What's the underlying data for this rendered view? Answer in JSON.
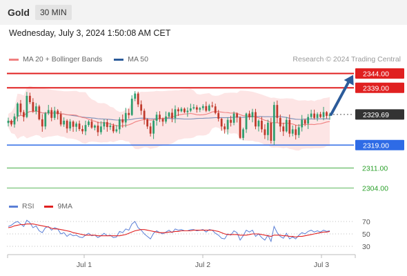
{
  "header": {
    "symbol": "Gold",
    "timeframe": "30 MIN"
  },
  "datetime": "Wednesday, July 3, 2024 1:50:08 AM CET",
  "legend": {
    "ma20": {
      "label": "MA 20 + Bollinger Bands",
      "color": "#f08080"
    },
    "ma50": {
      "label": "MA 50",
      "color": "#2b5b9a"
    },
    "credit": "Research © 2024 Trading Central"
  },
  "rsi_legend": {
    "rsi": {
      "label": "RSI",
      "color": "#5b7fd6"
    },
    "ma9": {
      "label": "9MA",
      "color": "#e02020"
    }
  },
  "colors": {
    "resistance": "#e02020",
    "support": "#2e6be6",
    "target": "#2aa02a",
    "current": "#333333",
    "arrow": "#2b5b9a",
    "up": "#2e9e6e",
    "down": "#c0392b",
    "band": "#fde0e0"
  },
  "chart_data": {
    "type": "candlestick",
    "ylim": [
      2300,
      2346
    ],
    "x_labels": [
      "Jul 1",
      "Jul 2",
      "Jul 3"
    ],
    "levels": [
      {
        "label": "2344.00",
        "value": 2344.0,
        "kind": "resistance"
      },
      {
        "label": "2339.00",
        "value": 2339.0,
        "kind": "resistance"
      },
      {
        "label": "2329.69",
        "value": 2329.69,
        "kind": "current"
      },
      {
        "label": "2319.00",
        "value": 2319.0,
        "kind": "support"
      },
      {
        "label": "2311.00",
        "value": 2311.0,
        "kind": "target"
      },
      {
        "label": "2304.00",
        "value": 2304.0,
        "kind": "target"
      }
    ],
    "forecast": {
      "from": 2329.7,
      "to": 2343.5
    },
    "closes": [
      2327.5,
      2326.2,
      2329.0,
      2333.5,
      2330.5,
      2328.8,
      2336.2,
      2334.0,
      2330.8,
      2332.5,
      2328.0,
      2325.5,
      2330.1,
      2331.2,
      2328.5,
      2331.0,
      2329.8,
      2326.2,
      2327.5,
      2324.8,
      2327.2,
      2325.4,
      2326.5,
      2324.6,
      2323.8,
      2326.0,
      2327.2,
      2325.1,
      2325.8,
      2323.5,
      2325.5,
      2327.0,
      2325.3,
      2325.8,
      2323.8,
      2324.5,
      2328.0,
      2326.9,
      2330.2,
      2329.5,
      2335.2,
      2337.0,
      2333.2,
      2331.0,
      2328.0,
      2325.5,
      2323.0,
      2327.5,
      2329.6,
      2328.1,
      2327.2,
      2329.0,
      2330.3,
      2328.4,
      2331.5,
      2330.8,
      2331.7,
      2330.5,
      2331.0,
      2331.8,
      2332.2,
      2331.4,
      2331.9,
      2332.6,
      2331.0,
      2332.8,
      2332.5,
      2330.2,
      2328.2,
      2325.5,
      2324.5,
      2327.8,
      2326.8,
      2330.0,
      2328.6,
      2321.5,
      2324.5,
      2330.0,
      2328.7,
      2330.5,
      2325.5,
      2327.5,
      2324.5,
      2322.5,
      2326.8,
      2320.5,
      2333.0,
      2328.5,
      2325.5,
      2323.8,
      2327.8,
      2323.0,
      2324.5,
      2322.5,
      2325.2,
      2327.8,
      2326.5,
      2328.8,
      2330.0,
      2328.5,
      2329.8,
      2328.8,
      2330.5,
      2329.2,
      2329.69
    ],
    "rsi": {
      "ylim": [
        20,
        80
      ],
      "levels": [
        70,
        50,
        30
      ],
      "values": [
        62,
        64,
        68,
        70,
        66,
        62,
        72,
        68,
        60,
        63,
        55,
        52,
        60,
        62,
        56,
        60,
        58,
        50,
        52,
        46,
        50,
        47,
        48,
        45,
        44,
        48,
        51,
        47,
        48,
        44,
        47,
        51,
        47,
        48,
        44,
        45,
        54,
        52,
        58,
        56,
        66,
        70,
        60,
        56,
        50,
        46,
        42,
        51,
        55,
        52,
        50,
        53,
        56,
        52,
        58,
        56,
        57,
        55,
        55,
        57,
        57,
        55,
        56,
        57,
        53,
        57,
        56,
        51,
        48,
        43,
        42,
        50,
        48,
        55,
        52,
        40,
        47,
        56,
        53,
        56,
        46,
        50,
        44,
        40,
        48,
        38,
        62,
        52,
        46,
        43,
        51,
        42,
        45,
        42,
        48,
        52,
        50,
        54,
        56,
        53,
        55,
        53,
        56,
        54,
        55
      ],
      "ma9": [
        60,
        61,
        63,
        64,
        65,
        65,
        66,
        66,
        66,
        65,
        64,
        63,
        62,
        61,
        59,
        58,
        58,
        57,
        56,
        55,
        54,
        52,
        51,
        50,
        49,
        48,
        48,
        48,
        48,
        47,
        47,
        47,
        47,
        47,
        47,
        47,
        47,
        48,
        49,
        51,
        53,
        55,
        56,
        57,
        57,
        56,
        55,
        54,
        53,
        52,
        52,
        52,
        53,
        53,
        54,
        54,
        55,
        55,
        55,
        55,
        56,
        56,
        56,
        56,
        56,
        56,
        56,
        55,
        54,
        52,
        50,
        49,
        49,
        49,
        49,
        48,
        48,
        48,
        49,
        50,
        50,
        50,
        49,
        48,
        47,
        46,
        48,
        48,
        48,
        47,
        47,
        46,
        46,
        45,
        46,
        46,
        47,
        48,
        49,
        50,
        51,
        52,
        53,
        53,
        54
      ]
    }
  }
}
